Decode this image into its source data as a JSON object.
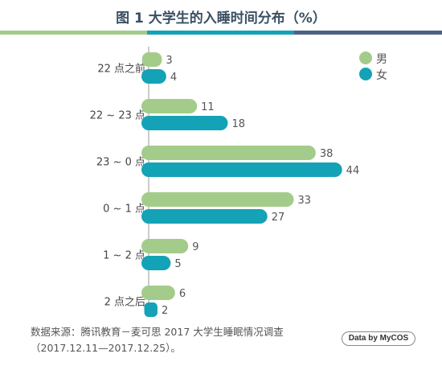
{
  "title": "图 1  大学生的入睡时间分布（%）",
  "colors": {
    "male": "#a3cc8a",
    "female": "#14a2b6",
    "stripe_green": "#a3cc8a",
    "stripe_teal": "#14a2b6",
    "stripe_navy": "#4d6183"
  },
  "source_line1": "数据来源：腾讯教育－麦可思 2017 大学生睡眠情况调查",
  "source_line2": "（2017.12.11—2017.12.25）。",
  "logo_text": "Data by MyCOS",
  "chart_data": {
    "type": "bar",
    "orientation": "horizontal",
    "title": "图 1  大学生的入睡时间分布（%）",
    "categories": [
      "22 点之前",
      "22 ~ 23 点",
      "23 ~ 0 点",
      "0 ~ 1 点",
      "1 ~ 2 点",
      "2 点之后"
    ],
    "series": [
      {
        "name": "男",
        "color": "#a3cc8a",
        "values": [
          3,
          11,
          38,
          33,
          9,
          6
        ]
      },
      {
        "name": "女",
        "color": "#14a2b6",
        "values": [
          4,
          18,
          44,
          27,
          5,
          2
        ]
      }
    ],
    "legend_position": "top-right",
    "grid": false,
    "data_labels": true
  }
}
